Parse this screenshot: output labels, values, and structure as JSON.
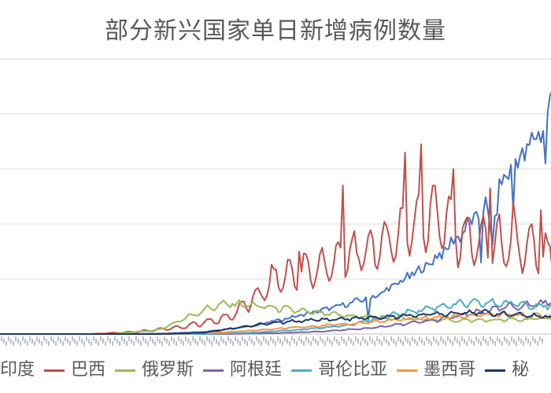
{
  "chart_data": {
    "type": "line",
    "title": "部分新兴国家单日新增病例数量",
    "grid": true,
    "legend_position": "bottom",
    "legend_visible_text": [
      "印度",
      "巴西",
      "俄罗斯",
      "阿根廷",
      "哥伦比亚",
      "墨西哥",
      "秘"
    ],
    "x": {
      "start_day": 1,
      "end_day": 250
    },
    "ylim": [
      0,
      100000
    ],
    "series": [
      {
        "name": "印度",
        "color": "#4472C4",
        "points": [
          [
            1,
            0
          ],
          [
            40,
            0
          ],
          [
            70,
            150
          ],
          [
            90,
            800
          ],
          [
            110,
            2800
          ],
          [
            130,
            6500
          ],
          [
            150,
            10500
          ],
          [
            165,
            14000
          ],
          [
            175,
            19000
          ],
          [
            185,
            24000
          ],
          [
            195,
            31000
          ],
          [
            205,
            40000
          ],
          [
            212,
            46000
          ],
          [
            215,
            35000
          ],
          [
            218,
            52000
          ],
          [
            222,
            60000
          ],
          [
            226,
            63000
          ],
          [
            230,
            67000
          ],
          [
            233,
            70000
          ],
          [
            236,
            75000
          ],
          [
            240,
            82000
          ],
          [
            244,
            93000
          ],
          [
            247,
            97000
          ],
          [
            250,
            95000
          ]
        ],
        "dips": [
          [
            161,
            5000
          ],
          [
            210,
            26000
          ],
          [
            224,
            45000
          ],
          [
            238,
            62000
          ],
          [
            248,
            80000
          ]
        ]
      },
      {
        "name": "巴西",
        "color": "#C0504D",
        "points": [
          [
            1,
            0
          ],
          [
            40,
            0
          ],
          [
            60,
            800
          ],
          [
            80,
            2500
          ],
          [
            100,
            6000
          ],
          [
            110,
            12000
          ],
          [
            115,
            15000
          ],
          [
            120,
            20000
          ],
          [
            130,
            22000
          ],
          [
            140,
            24000
          ],
          [
            150,
            28000
          ],
          [
            160,
            30000
          ],
          [
            170,
            34000
          ],
          [
            180,
            40000
          ],
          [
            190,
            44000
          ],
          [
            200,
            36000
          ],
          [
            210,
            33000
          ],
          [
            220,
            32000
          ],
          [
            230,
            31000
          ],
          [
            240,
            27000
          ],
          [
            250,
            24000
          ]
        ],
        "spikes": [
          [
            131,
            30000
          ],
          [
            150,
            54000
          ],
          [
            177,
            66000
          ],
          [
            184,
            69000
          ],
          [
            198,
            60000
          ],
          [
            214,
            53000
          ],
          [
            224,
            48000
          ],
          [
            236,
            45000
          ]
        ]
      },
      {
        "name": "俄罗斯",
        "color": "#9BBB59",
        "points": [
          [
            1,
            0
          ],
          [
            50,
            0
          ],
          [
            70,
            1500
          ],
          [
            82,
            6000
          ],
          [
            92,
            9500
          ],
          [
            100,
            11000
          ],
          [
            110,
            10500
          ],
          [
            120,
            9500
          ],
          [
            130,
            8500
          ],
          [
            140,
            7500
          ],
          [
            150,
            6800
          ],
          [
            160,
            6200
          ],
          [
            170,
            5800
          ],
          [
            180,
            5600
          ],
          [
            190,
            5200
          ],
          [
            200,
            5000
          ],
          [
            210,
            5000
          ],
          [
            220,
            5100
          ],
          [
            230,
            5300
          ],
          [
            240,
            5800
          ],
          [
            250,
            6200
          ]
        ]
      },
      {
        "name": "阿根廷",
        "color": "#8064A2",
        "points": [
          [
            1,
            0
          ],
          [
            100,
            0
          ],
          [
            120,
            300
          ],
          [
            140,
            900
          ],
          [
            160,
            2000
          ],
          [
            175,
            3500
          ],
          [
            190,
            5000
          ],
          [
            200,
            6500
          ],
          [
            210,
            8000
          ],
          [
            220,
            9500
          ],
          [
            230,
            10500
          ],
          [
            240,
            11500
          ],
          [
            250,
            12000
          ]
        ]
      },
      {
        "name": "哥伦比亚",
        "color": "#4BACC6",
        "points": [
          [
            1,
            0
          ],
          [
            90,
            0
          ],
          [
            110,
            500
          ],
          [
            130,
            1500
          ],
          [
            150,
            3000
          ],
          [
            165,
            5500
          ],
          [
            175,
            7500
          ],
          [
            185,
            9000
          ],
          [
            195,
            10500
          ],
          [
            205,
            11000
          ],
          [
            215,
            11200
          ],
          [
            225,
            11000
          ],
          [
            235,
            10500
          ],
          [
            245,
            10000
          ],
          [
            250,
            9500
          ]
        ]
      },
      {
        "name": "墨西哥",
        "color": "#F79646",
        "points": [
          [
            1,
            0
          ],
          [
            70,
            0
          ],
          [
            90,
            300
          ],
          [
            110,
            1200
          ],
          [
            130,
            2500
          ],
          [
            150,
            3500
          ],
          [
            165,
            4500
          ],
          [
            180,
            5500
          ],
          [
            195,
            6300
          ],
          [
            210,
            6800
          ],
          [
            225,
            7000
          ],
          [
            240,
            6500
          ],
          [
            250,
            6000
          ]
        ]
      },
      {
        "name": "秘鲁",
        "color": "#1F3864",
        "points": [
          [
            1,
            0
          ],
          [
            70,
            0
          ],
          [
            90,
            500
          ],
          [
            105,
            2500
          ],
          [
            120,
            4000
          ],
          [
            135,
            5000
          ],
          [
            150,
            5500
          ],
          [
            165,
            6000
          ],
          [
            180,
            6800
          ],
          [
            195,
            7500
          ],
          [
            205,
            8000
          ],
          [
            215,
            7500
          ],
          [
            225,
            7000
          ],
          [
            235,
            6500
          ],
          [
            245,
            6000
          ],
          [
            250,
            5800
          ]
        ]
      }
    ]
  }
}
